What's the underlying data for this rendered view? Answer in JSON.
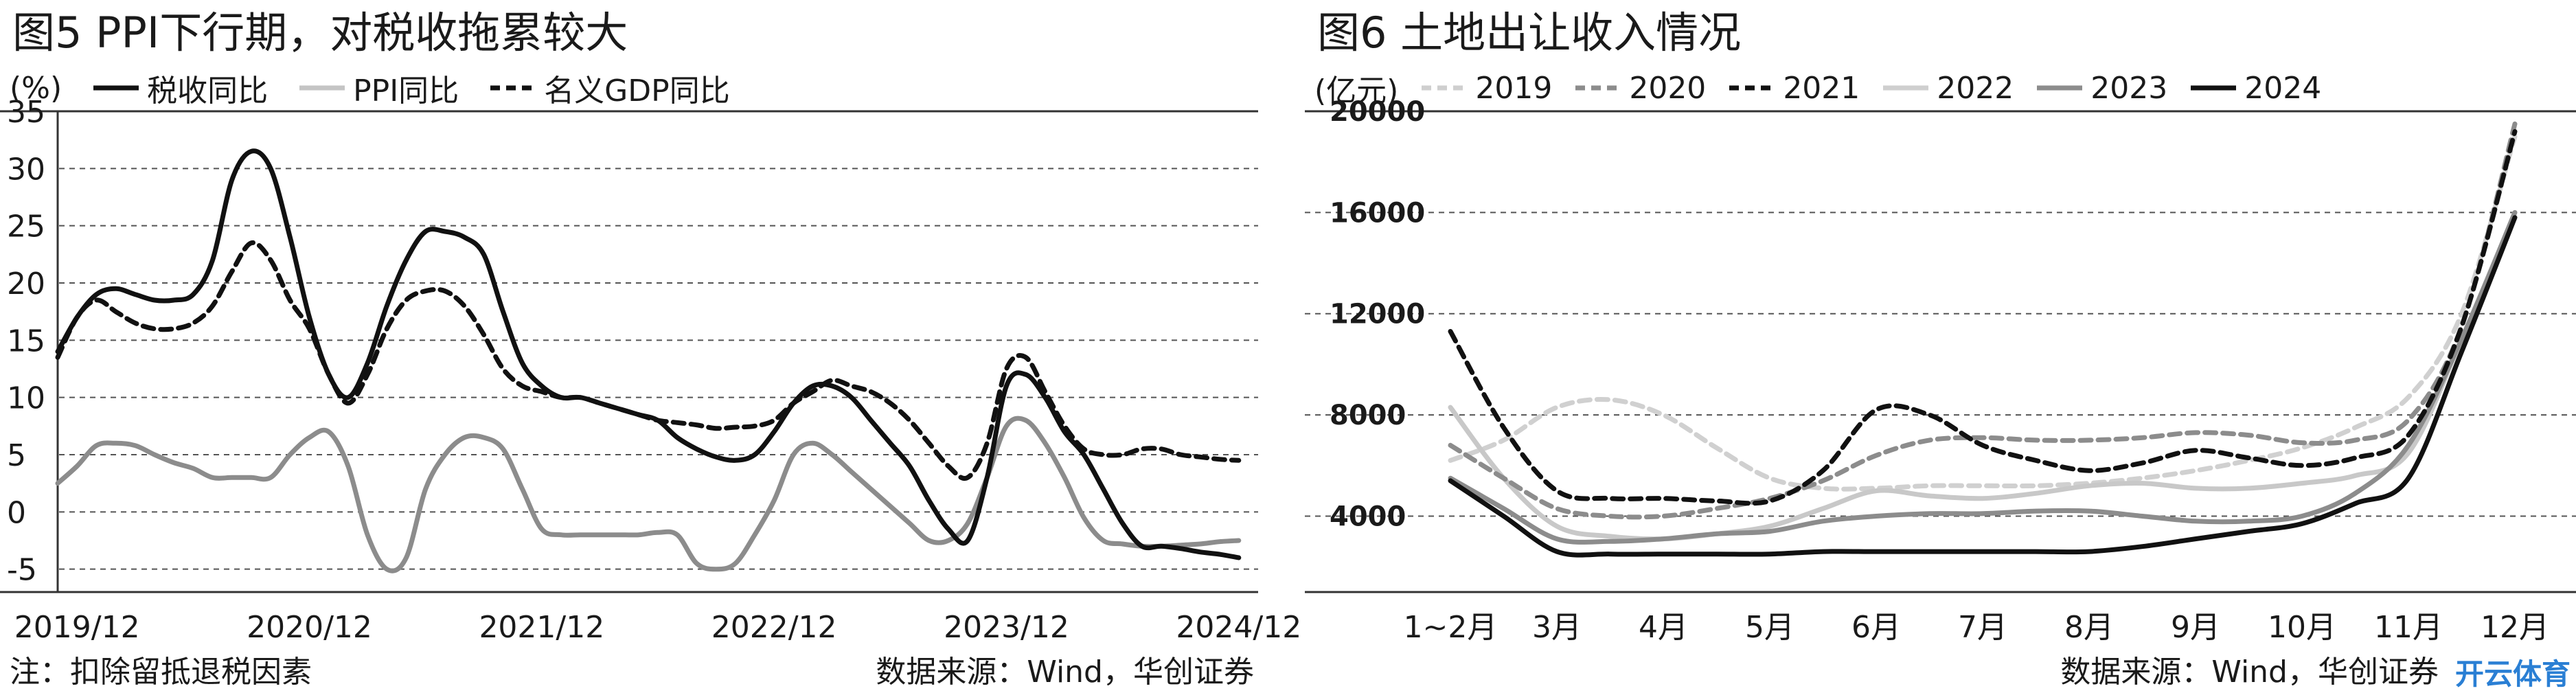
{
  "chart_data": [
    {
      "type": "line",
      "title": "图5 PPI下行期，对税收拖累较大",
      "unit_label": "(%)",
      "ylim": [
        -7,
        35
      ],
      "yticks": [
        35,
        30,
        25,
        20,
        15,
        10,
        5,
        0,
        -5
      ],
      "y_tick_labels": [
        "35",
        "30",
        "25",
        "20",
        "15",
        "10",
        "5",
        "0",
        "-5"
      ],
      "x_tick_labels": [
        "2019/12",
        "2020/12",
        "2021/12",
        "2022/12",
        "2023/12",
        "2024/12"
      ],
      "x_range": [
        -1,
        61
      ],
      "x_tick_positions": [
        0,
        12,
        24,
        36,
        48,
        60
      ],
      "grid": "horizontal-dashed",
      "legend_position": "top",
      "series": [
        {
          "name": "税收同比",
          "style": "solid-black",
          "x": [
            -1,
            0,
            1,
            2,
            3,
            4,
            5,
            6,
            7,
            8,
            9,
            10,
            11,
            12,
            13,
            14,
            15,
            16,
            17,
            18,
            19,
            20,
            21,
            22,
            23,
            24,
            25,
            26,
            27,
            28,
            29,
            30,
            31,
            32,
            33,
            34,
            35,
            36,
            37,
            38,
            39,
            40,
            41,
            42,
            43,
            44,
            45,
            46,
            47,
            48,
            49,
            50,
            51,
            52,
            53,
            54,
            55,
            56,
            57,
            58,
            59,
            60
          ],
          "values": [
            14,
            17,
            19,
            19.5,
            19,
            18.5,
            18.5,
            19,
            22,
            29,
            31.5,
            30,
            24,
            17,
            12,
            10,
            13,
            18,
            22,
            24.5,
            24.5,
            24,
            22.5,
            17.5,
            13,
            11,
            10,
            10,
            9.5,
            9,
            8.5,
            8,
            6.5,
            5.5,
            4.8,
            4.5,
            5,
            7,
            9.5,
            11,
            11,
            10,
            8,
            6,
            4,
            1,
            -1.5,
            -2.5,
            3,
            11,
            12,
            10,
            7,
            5,
            2,
            -1,
            -3,
            -3,
            -3.2,
            -3.5,
            -3.7,
            -4
          ]
        },
        {
          "name": "PPI同比",
          "style": "solid-grey",
          "x": [
            -1,
            0,
            1,
            2,
            3,
            4,
            5,
            6,
            7,
            8,
            9,
            10,
            11,
            12,
            13,
            14,
            15,
            16,
            17,
            18,
            19,
            20,
            21,
            22,
            23,
            24,
            25,
            26,
            27,
            28,
            29,
            30,
            31,
            32,
            33,
            34,
            35,
            36,
            37,
            38,
            39,
            40,
            41,
            42,
            43,
            44,
            45,
            46,
            47,
            48,
            49,
            50,
            51,
            52,
            53,
            54,
            55,
            56,
            57,
            58,
            59,
            60
          ],
          "values": [
            2.5,
            4,
            5.8,
            6,
            5.8,
            5,
            4.3,
            3.8,
            3,
            3,
            3,
            3,
            5,
            6.5,
            7,
            4,
            -2,
            -5,
            -4,
            2,
            5,
            6.5,
            6.5,
            5.5,
            2,
            -1.5,
            -2,
            -2,
            -2,
            -2,
            -2,
            -1.8,
            -2,
            -4.5,
            -5,
            -4.5,
            -2,
            1,
            5,
            6,
            5,
            3.5,
            2,
            0.5,
            -1,
            -2.5,
            -2.5,
            -1,
            3,
            7.5,
            8,
            6,
            3,
            -0.5,
            -2.5,
            -2.8,
            -3,
            -3,
            -2.9,
            -2.8,
            -2.6,
            -2.5
          ]
        },
        {
          "name": "名义GDP同比",
          "style": "dashed-black",
          "x": [
            -1,
            0,
            1,
            2,
            3,
            4,
            5,
            6,
            7,
            8,
            9,
            10,
            11,
            12,
            13,
            14,
            15,
            16,
            17,
            18,
            19,
            20,
            21,
            22,
            23,
            24,
            25,
            26,
            27,
            28,
            29,
            30,
            31,
            32,
            33,
            34,
            35,
            36,
            37,
            38,
            39,
            40,
            41,
            42,
            43,
            44,
            45,
            46,
            47,
            48,
            49,
            50,
            51,
            52,
            53,
            54,
            55,
            56,
            57,
            58,
            59,
            60
          ],
          "values": [
            13.5,
            17,
            18.5,
            17.5,
            16.5,
            16,
            16,
            16.5,
            18,
            21,
            23.5,
            22,
            18.5,
            16,
            12,
            9.5,
            12,
            16,
            18.5,
            19.3,
            19.3,
            18,
            15.5,
            12.5,
            11,
            10.5,
            10,
            10,
            9.5,
            9,
            8.5,
            8,
            7.8,
            7.6,
            7.3,
            7.4,
            7.5,
            8,
            9.5,
            10.5,
            11.5,
            11,
            10.5,
            9.5,
            8,
            6,
            4,
            3,
            6,
            12.5,
            13.5,
            10.5,
            7.5,
            5.5,
            5,
            5,
            5.5,
            5.5,
            5,
            4.8,
            4.6,
            4.5
          ]
        }
      ],
      "note": "注：扣除留抵退税因素",
      "source": "数据来源：Wind，华创证券"
    },
    {
      "type": "line",
      "title": "图6 土地出让收入情况",
      "unit_label": "(亿元)",
      "ylim": [
        1000,
        20000
      ],
      "yticks": [
        20000,
        16000,
        12000,
        8000,
        4000
      ],
      "y_tick_labels": [
        "20000",
        "16000",
        "12000",
        "8000",
        "4000"
      ],
      "categories": [
        "1~2月",
        "3月",
        "4月",
        "5月",
        "6月",
        "7月",
        "8月",
        "9月",
        "10月",
        "11月",
        "12月"
      ],
      "grid": "horizontal-dashed",
      "legend_position": "top",
      "series": [
        {
          "name": "2019",
          "style": "dashed-lightgrey",
          "x": [
            0,
            0.5,
            1,
            1.5,
            2,
            2.5,
            3,
            3.5,
            4,
            4.5,
            5,
            5.5,
            6,
            6.5,
            7,
            7.5,
            8,
            8.5,
            9,
            9.5,
            10
          ],
          "values": [
            6200,
            7000,
            8300,
            8600,
            8000,
            6700,
            5500,
            5100,
            5100,
            5200,
            5200,
            5200,
            5300,
            5500,
            5800,
            6200,
            6700,
            7500,
            8700,
            12000,
            19000
          ]
        },
        {
          "name": "2020",
          "style": "dashed-grey",
          "x": [
            0,
            0.5,
            1,
            1.5,
            2,
            2.5,
            3,
            3.5,
            4,
            4.5,
            5,
            5.5,
            6,
            6.5,
            7,
            7.5,
            8,
            8.5,
            9,
            9.5,
            10
          ],
          "values": [
            6800,
            5500,
            4300,
            4000,
            4000,
            4300,
            4700,
            5400,
            6400,
            7000,
            7100,
            7000,
            7000,
            7100,
            7300,
            7200,
            6900,
            7000,
            7800,
            11500,
            19500
          ]
        },
        {
          "name": "2021",
          "style": "dashed-black",
          "x": [
            0,
            0.5,
            1,
            1.5,
            2,
            2.5,
            3,
            3.5,
            4,
            4.5,
            5,
            5.5,
            6,
            6.5,
            7,
            7.5,
            8,
            8.5,
            9,
            9.5,
            10
          ],
          "values": [
            11300,
            7500,
            5000,
            4700,
            4700,
            4600,
            4600,
            5800,
            8200,
            8000,
            6800,
            6200,
            5800,
            6100,
            6600,
            6300,
            6000,
            6300,
            7200,
            11500,
            19200
          ]
        },
        {
          "name": "2022",
          "style": "solid-lightgrey",
          "x": [
            0,
            0.5,
            1,
            1.5,
            2,
            2.5,
            3,
            3.5,
            4,
            4.5,
            5,
            5.5,
            6,
            6.5,
            7,
            7.5,
            8,
            8.5,
            9,
            9.5,
            10
          ],
          "values": [
            8300,
            5500,
            3600,
            3200,
            3100,
            3300,
            3600,
            4300,
            5000,
            4800,
            4700,
            4900,
            5200,
            5300,
            5100,
            5100,
            5300,
            5600,
            6500,
            11000,
            16000
          ]
        },
        {
          "name": "2023",
          "style": "solid-grey",
          "x": [
            0,
            0.5,
            1,
            1.5,
            2,
            2.5,
            3,
            3.5,
            4,
            4.5,
            5,
            5.5,
            6,
            6.5,
            7,
            7.5,
            8,
            8.5,
            9,
            9.5,
            10
          ],
          "values": [
            5500,
            4300,
            3100,
            3000,
            3100,
            3300,
            3400,
            3800,
            4000,
            4100,
            4100,
            4200,
            4200,
            4000,
            3800,
            3800,
            4000,
            4900,
            6800,
            11000,
            16000
          ]
        },
        {
          "name": "2024",
          "style": "solid-black",
          "x": [
            0,
            0.5,
            1,
            1.5,
            2,
            2.5,
            3,
            3.5,
            4,
            4.5,
            5,
            5.5,
            6,
            6.5,
            7,
            7.5,
            8,
            8.5,
            9,
            9.5,
            10
          ],
          "values": [
            5400,
            4000,
            2600,
            2500,
            2500,
            2500,
            2500,
            2600,
            2600,
            2600,
            2600,
            2600,
            2600,
            2800,
            3100,
            3400,
            3700,
            4500,
            5500,
            10500,
            15800
          ]
        }
      ],
      "source": "数据来源：Wind，华创证券"
    }
  ],
  "watermark": "开云体育"
}
